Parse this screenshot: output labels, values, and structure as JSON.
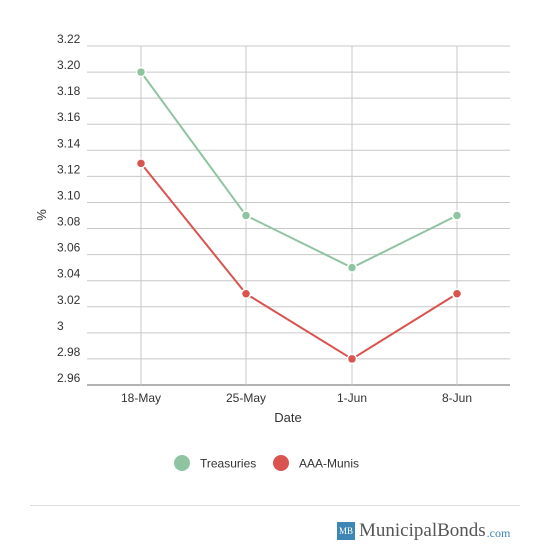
{
  "chart_data": {
    "type": "line",
    "categories": [
      "18-May",
      "25-May",
      "1-Jun",
      "8-Jun"
    ],
    "series": [
      {
        "name": "Treasuries",
        "values": [
          3.2,
          3.09,
          3.05,
          3.09
        ],
        "color": "#8fc4a1"
      },
      {
        "name": "AAA-Munis",
        "values": [
          3.13,
          3.03,
          2.98,
          3.03
        ],
        "color": "#d9534f"
      }
    ],
    "xlabel": "Date",
    "ylabel": "%",
    "ylim": [
      2.96,
      3.22
    ],
    "yticks": [
      {
        "value": 2.96,
        "label": "2.96"
      },
      {
        "value": 2.98,
        "label": "2.98"
      },
      {
        "value": 3.0,
        "label": "3"
      },
      {
        "value": 3.02,
        "label": "3.02"
      },
      {
        "value": 3.04,
        "label": "3.04"
      },
      {
        "value": 3.06,
        "label": "3.06"
      },
      {
        "value": 3.08,
        "label": "3.08"
      },
      {
        "value": 3.1,
        "label": "3.10"
      },
      {
        "value": 3.12,
        "label": "3.12"
      },
      {
        "value": 3.14,
        "label": "3.14"
      },
      {
        "value": 3.16,
        "label": "3.16"
      },
      {
        "value": 3.18,
        "label": "3.18"
      },
      {
        "value": 3.2,
        "label": "3.20"
      },
      {
        "value": 3.22,
        "label": "3.22"
      }
    ],
    "grid": true,
    "legend": "bottom-center"
  },
  "footer": {
    "logo_text": "MB",
    "brand_name": "MunicipalBonds",
    "brand_tld": ".com"
  }
}
